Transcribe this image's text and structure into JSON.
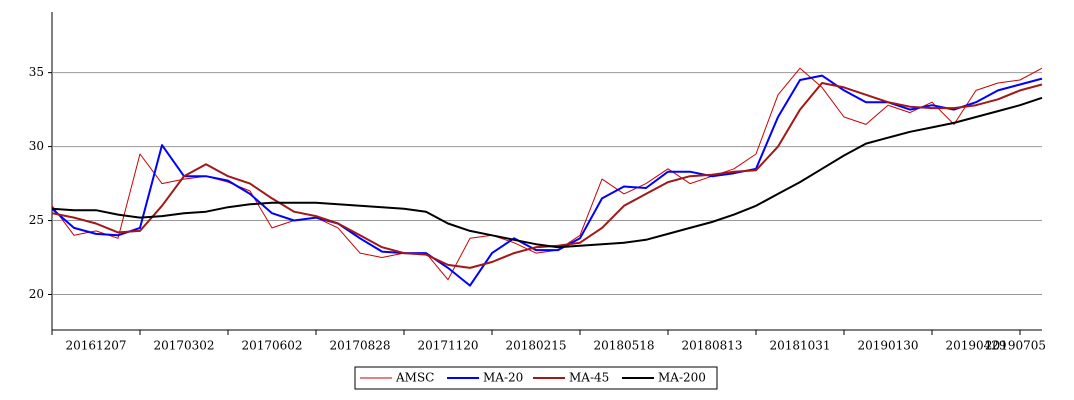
{
  "chart_data": {
    "type": "line",
    "categories": [
      null,
      null,
      "20161207",
      null,
      null,
      null,
      "20170302",
      null,
      null,
      null,
      "20170602",
      null,
      null,
      null,
      "20170828",
      null,
      null,
      null,
      "20171120",
      null,
      null,
      null,
      "20180215",
      null,
      null,
      null,
      "20180518",
      null,
      null,
      null,
      "20180813",
      null,
      null,
      null,
      "20181031",
      null,
      null,
      null,
      "20190130",
      null,
      null,
      null,
      "20190429",
      null,
      null,
      "20190705"
    ],
    "series": [
      {
        "name": "AMSC",
        "color": "#cc0000",
        "width": 1,
        "values": [
          26,
          24,
          24.3,
          23.8,
          29.5,
          27.5,
          27.8,
          28,
          27.6,
          27,
          24.5,
          25,
          25.2,
          24.5,
          22.8,
          22.5,
          22.8,
          22.8,
          21,
          23.8,
          24,
          23.5,
          22.8,
          23,
          24,
          27.8,
          26.8,
          27.5,
          28.5,
          27.5,
          28,
          28.5,
          29.5,
          33.5,
          35.3,
          34,
          32,
          31.5,
          32.8,
          32.3,
          33,
          31.5,
          33.8,
          34.3,
          34.5,
          35.3
        ]
      },
      {
        "name": "MA-20",
        "color": "#0000ff",
        "width": 2,
        "values": [
          25.8,
          24.5,
          24.1,
          24,
          24.5,
          30.1,
          28,
          28,
          27.7,
          26.8,
          25.5,
          25,
          25.2,
          24.8,
          23.8,
          22.9,
          22.8,
          22.8,
          21.8,
          20.6,
          22.8,
          23.8,
          23,
          23,
          23.8,
          26.5,
          27.3,
          27.2,
          28.3,
          28.3,
          28,
          28.2,
          28.5,
          32,
          34.5,
          34.8,
          33.8,
          33,
          33,
          32.5,
          32.8,
          32.5,
          33,
          33.8,
          34.2,
          34.6
        ]
      },
      {
        "name": "MA-45",
        "color": "#a01818",
        "width": 2,
        "values": [
          25.5,
          25.2,
          24.8,
          24.2,
          24.3,
          26,
          28,
          28.8,
          28,
          27.5,
          26.5,
          25.6,
          25.3,
          24.8,
          24,
          23.2,
          22.8,
          22.7,
          22,
          21.8,
          22.2,
          22.8,
          23.2,
          23.3,
          23.5,
          24.5,
          26,
          26.8,
          27.6,
          28,
          28.1,
          28.3,
          28.4,
          30,
          32.5,
          34.3,
          34,
          33.5,
          33,
          32.7,
          32.6,
          32.6,
          32.8,
          33.2,
          33.8,
          34.2
        ]
      },
      {
        "name": "MA-200",
        "color": "#000000",
        "width": 2,
        "values": [
          25.8,
          25.7,
          25.7,
          25.4,
          25.2,
          25.3,
          25.5,
          25.6,
          25.9,
          26.1,
          26.2,
          26.2,
          26.2,
          26.1,
          26,
          25.9,
          25.8,
          25.6,
          24.8,
          24.3,
          24,
          23.7,
          23.4,
          23.2,
          23.3,
          23.4,
          23.5,
          23.7,
          24.1,
          24.5,
          24.9,
          25.4,
          26,
          26.8,
          27.6,
          28.5,
          29.4,
          30.2,
          30.6,
          31,
          31.3,
          31.6,
          32,
          32.4,
          32.8,
          33.3
        ]
      }
    ],
    "ylim": [
      17.6,
      39.1
    ],
    "yticks": [
      20,
      25,
      30,
      35
    ],
    "grid": true,
    "legend": "bottom"
  }
}
